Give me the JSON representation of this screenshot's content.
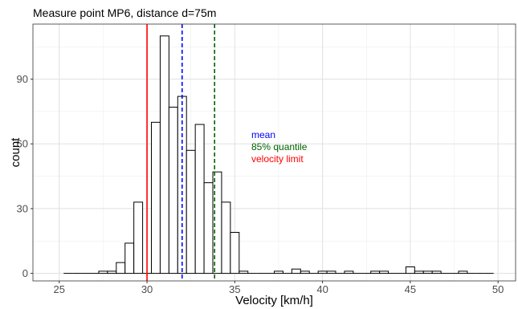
{
  "chart_data": {
    "type": "histogram",
    "title": "Measure point MP6, distance d=75m",
    "xlabel": "Velocity [km/h]",
    "ylabel": "count",
    "xlim": [
      23.5,
      51.0
    ],
    "ylim": [
      -3.5,
      115.5
    ],
    "x_ticks": [
      25,
      30,
      35,
      40,
      45,
      50
    ],
    "y_ticks": [
      0,
      30,
      60,
      90
    ],
    "grid": true,
    "bin_width": 0.5,
    "first_bin_left": 25.25,
    "counts": [
      0,
      0,
      0,
      0,
      1,
      1,
      5,
      14,
      33,
      0,
      70,
      110,
      77,
      82,
      57,
      69,
      42,
      47,
      33,
      19,
      1,
      0,
      0,
      0,
      1,
      0,
      2,
      1,
      0,
      1,
      1,
      0,
      1,
      0,
      0,
      1,
      1,
      0,
      0,
      3,
      1,
      1,
      1,
      0,
      0,
      1,
      0,
      0,
      0
    ],
    "reference_lines": [
      {
        "name": "velocity limit",
        "x": 30.0,
        "color": "#ff0000",
        "style": "solid"
      },
      {
        "name": "mean",
        "x": 32.0,
        "color": "#0000ff",
        "style": "dashed"
      },
      {
        "name": "85% quantile",
        "x": 33.85,
        "color": "#006400",
        "style": "dashed"
      }
    ],
    "annotations": [
      {
        "text": "mean",
        "color": "#0000ff"
      },
      {
        "text": "85% quantile",
        "color": "#006400"
      },
      {
        "text": "velocity limit",
        "color": "#ff0000"
      }
    ]
  }
}
